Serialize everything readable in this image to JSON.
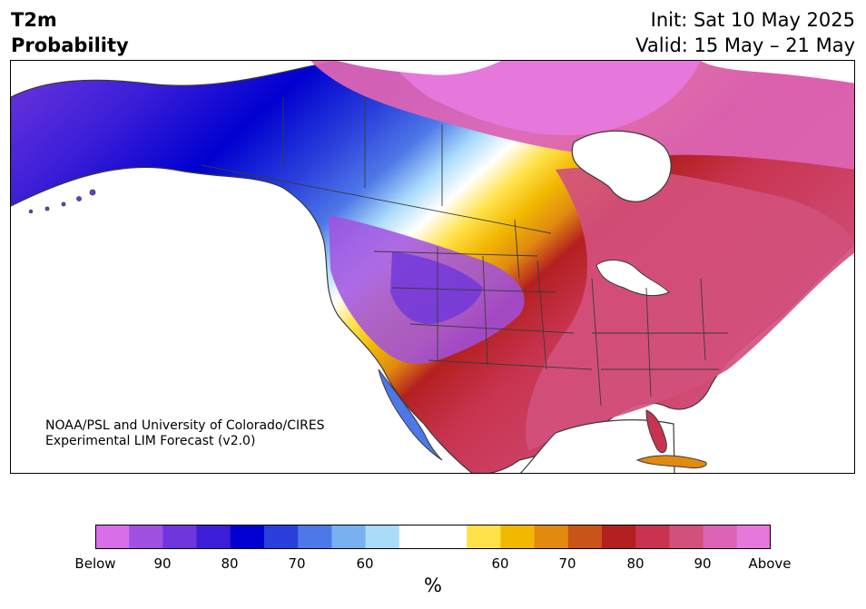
{
  "header": {
    "title_line1": "T2m",
    "title_line2": "Probability",
    "init_label": "Init: Sat 10 May 2025",
    "valid_label": "Valid: 15 May – 21 May"
  },
  "map": {
    "credit_line1": "NOAA/PSL and University of Colorado/CIRES",
    "credit_line2": "Experimental LIM Forecast (v2.0)"
  },
  "colorbar": {
    "unit": "%",
    "colors": [
      "#d86fe8",
      "#a050e0",
      "#6e36dc",
      "#3c1ed8",
      "#0000d0",
      "#2a40dc",
      "#4e78e8",
      "#78b0f0",
      "#aadcfa",
      "#ffffff",
      "#ffffff",
      "#ffe24a",
      "#f2b800",
      "#e08a10",
      "#c85418",
      "#b42020",
      "#c83450",
      "#d2507c",
      "#dc64b4",
      "#e678dc"
    ],
    "tick_labels": [
      "Below",
      "90",
      "80",
      "70",
      "60",
      "60",
      "70",
      "80",
      "90",
      "Above"
    ]
  },
  "colors": {
    "below_strong": "#3c1ed8",
    "below_mid": "#2a40dc",
    "above_strong": "#d2507c",
    "above_peak": "#e678dc",
    "border_lines": "#3a3a3a"
  }
}
